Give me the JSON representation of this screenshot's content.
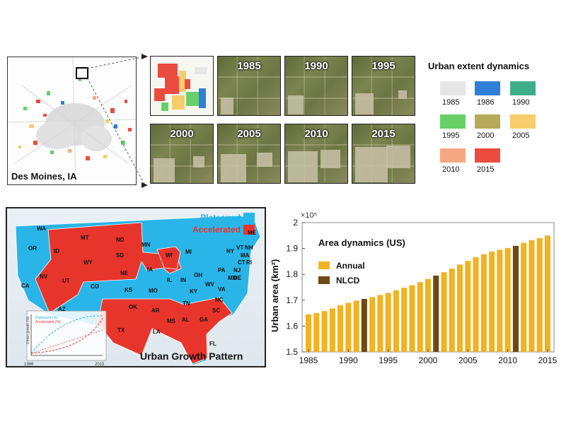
{
  "top": {
    "city_label": "Des Moines, IA",
    "years": [
      "1985",
      "1990",
      "1995",
      "2000",
      "2005",
      "2010",
      "2015"
    ],
    "legend_title": "Urban extent dynamics",
    "legend": [
      {
        "year": "1985",
        "color": "#e6e6e6"
      },
      {
        "year": "1986",
        "color": "#2f7fd6"
      },
      {
        "year": "1990",
        "color": "#3dae8a"
      },
      {
        "year": "1995",
        "color": "#66d067"
      },
      {
        "year": "2000",
        "color": "#b7a95a"
      },
      {
        "year": "2005",
        "color": "#f7cc6a"
      },
      {
        "year": "2010",
        "color": "#f6a883"
      },
      {
        "year": "2015",
        "color": "#ec4b3f"
      }
    ]
  },
  "map": {
    "title": "Urban Growth Pattern",
    "legend": [
      {
        "label": "Plateaued",
        "color": "#2ab5e8"
      },
      {
        "label": "Accelerated",
        "color": "#e8352c"
      }
    ],
    "states": [
      "WA",
      "OR",
      "CA",
      "ID",
      "NV",
      "MT",
      "WY",
      "UT",
      "AZ",
      "ND",
      "SD",
      "NE",
      "CO",
      "KS",
      "OK",
      "TX",
      "MN",
      "IA",
      "MO",
      "AR",
      "LA",
      "WI",
      "IL",
      "MI",
      "IN",
      "OH",
      "KY",
      "TN",
      "MS",
      "AL",
      "GA",
      "FL",
      "SC",
      "NC",
      "VA",
      "WV",
      "PA",
      "NY",
      "ME",
      "VT",
      "NH",
      "MA",
      "CT",
      "RI",
      "NJ",
      "DE",
      "MD"
    ],
    "inset": {
      "ylabel": "Urban growth (%)",
      "legend": [
        "Plateaued (%)",
        "Accelerated (%)"
      ],
      "xticks": [
        "1986",
        "2015"
      ]
    }
  },
  "chart_data": {
    "type": "bar",
    "title": "Area dynamics (US)",
    "xlabel": "",
    "ylabel": "Urban area (km²)",
    "exponent": "×10⁵",
    "ylim": [
      1.5,
      2.0
    ],
    "yticks": [
      "1.5",
      "1.6",
      "1.7",
      "1.8",
      "1.9",
      "2"
    ],
    "ytick_values": [
      1.5,
      1.6,
      1.7,
      1.8,
      1.9,
      2.0
    ],
    "xticks": [
      "1985",
      "1990",
      "1995",
      "2000",
      "2005",
      "2010",
      "2015"
    ],
    "xtick_values": [
      1985,
      1990,
      1995,
      2000,
      2005,
      2010,
      2015
    ],
    "x": [
      1985,
      1986,
      1987,
      1988,
      1989,
      1990,
      1991,
      1992,
      1993,
      1994,
      1995,
      1996,
      1997,
      1998,
      1999,
      2000,
      2001,
      2002,
      2003,
      2004,
      2005,
      2006,
      2007,
      2008,
      2009,
      2010,
      2011,
      2012,
      2013,
      2014,
      2015
    ],
    "values": [
      1.645,
      1.65,
      1.658,
      1.668,
      1.68,
      1.69,
      1.698,
      1.705,
      1.712,
      1.72,
      1.728,
      1.738,
      1.748,
      1.758,
      1.77,
      1.782,
      1.795,
      1.808,
      1.822,
      1.838,
      1.852,
      1.866,
      1.878,
      1.888,
      1.895,
      1.902,
      1.91,
      1.922,
      1.932,
      1.94,
      1.95
    ],
    "nlcd_years": [
      1992,
      2001,
      2011
    ],
    "series": [
      {
        "name": "Annual",
        "color": "#f0b323"
      },
      {
        "name": "NLCD",
        "color": "#6b4a14"
      }
    ]
  }
}
